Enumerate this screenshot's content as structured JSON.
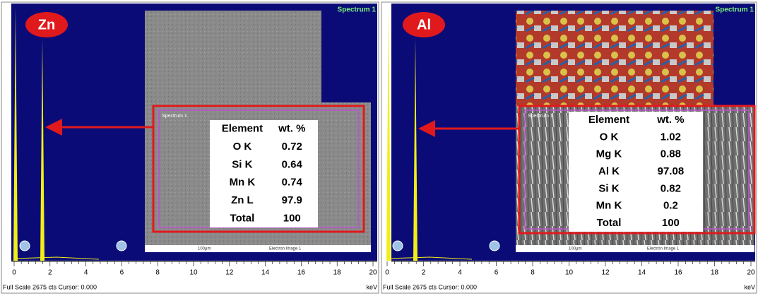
{
  "panels": [
    {
      "label": "Zn",
      "spectrum_label": "Spectrum 1",
      "sem_label": "Spectrum 1",
      "table": {
        "header": [
          "Element",
          "wt. %"
        ],
        "rows": [
          [
            "O K",
            "0.72"
          ],
          [
            "Si K",
            "0.64"
          ],
          [
            "Mn K",
            "0.74"
          ],
          [
            "Zn L",
            "97.9"
          ],
          [
            "Total",
            "100"
          ]
        ]
      },
      "scale_bar": "100μm",
      "image_label": "Electron Image 1",
      "x_ticks": [
        "0",
        "2",
        "4",
        "6",
        "8",
        "10",
        "12",
        "14",
        "16",
        "18",
        "20"
      ],
      "x_unit": "keV",
      "footer": "Full Scale 2675 cts Cursor: 0.000"
    },
    {
      "label": "Al",
      "spectrum_label": "Spectrum 1",
      "sem_label": "Spectrum 1",
      "table": {
        "header": [
          "Element",
          "wt. %"
        ],
        "rows": [
          [
            "O K",
            "1.02"
          ],
          [
            "Mg K",
            "0.88"
          ],
          [
            "Al K",
            "97.08"
          ],
          [
            "Si K",
            "0.82"
          ],
          [
            "Mn K",
            "0.2"
          ],
          [
            "Total",
            "100"
          ]
        ]
      },
      "scale_bar": "100μm",
      "image_label": "Electron Image 1",
      "x_ticks": [
        "0",
        "2",
        "4",
        "6",
        "8",
        "10",
        "12",
        "14",
        "16",
        "18",
        "20"
      ],
      "x_unit": "keV",
      "footer": "Full Scale 2675 cts Cursor: 0.000"
    }
  ]
}
